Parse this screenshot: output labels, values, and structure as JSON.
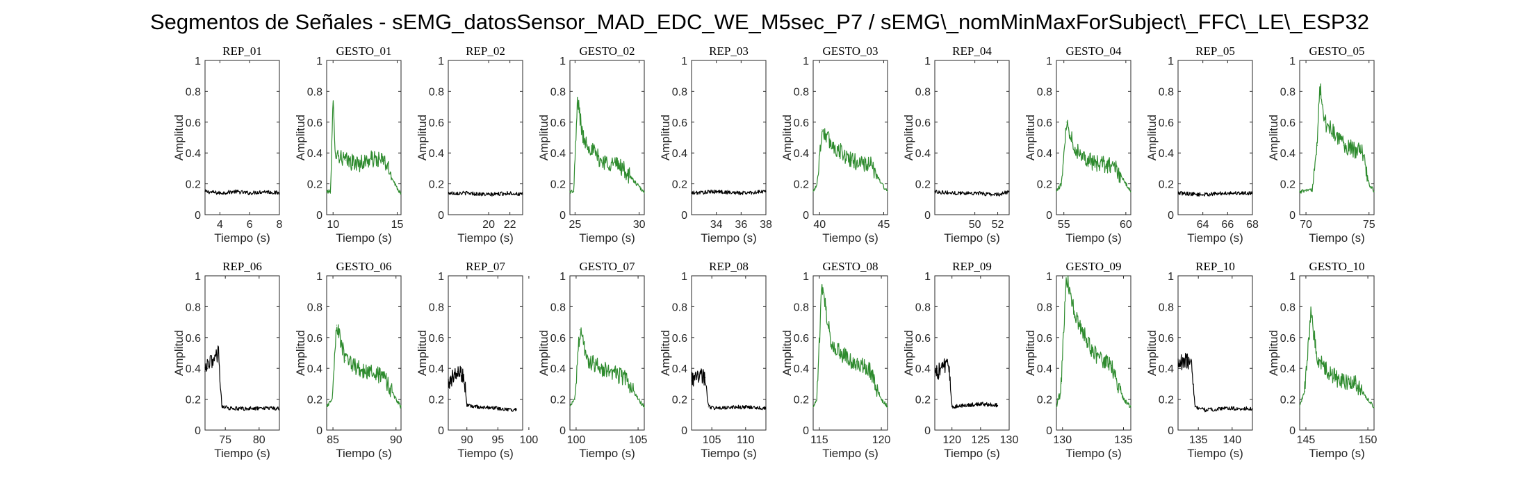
{
  "figure": {
    "title": "Segmentos de Señales - sEMG_datosSensor_MAD_EDC_WE_M5sec_P7 / sEMG\\_nomMinMaxForSubject\\_FFC\\_LE\\_ESP32"
  },
  "colors": {
    "rep": "#000000",
    "gesture": "#2e8b2e",
    "axis": "#262626"
  },
  "chart_data": [
    {
      "type": "line",
      "title": "REP_01",
      "xlabel": "Tiempo (s)",
      "ylabel": "Amplitud",
      "xlim": [
        3,
        8
      ],
      "ylim": [
        0,
        1
      ],
      "xticks": [
        4,
        6,
        8
      ],
      "yticks": [
        0,
        0.2,
        0.4,
        0.6,
        0.8,
        1
      ],
      "series": [
        {
          "kind": "rep",
          "x": [
            3.0,
            4.0,
            5.0,
            6.0,
            7.0,
            8.0
          ],
          "y": [
            0.15,
            0.14,
            0.15,
            0.14,
            0.15,
            0.14
          ]
        }
      ]
    },
    {
      "type": "line",
      "title": "GESTO_01",
      "xlabel": "Tiempo (s)",
      "ylabel": "Amplitud",
      "xlim": [
        9.5,
        15.3
      ],
      "ylim": [
        0,
        1
      ],
      "xticks": [
        10,
        15
      ],
      "yticks": [
        0,
        0.2,
        0.4,
        0.6,
        0.8,
        1
      ],
      "series": [
        {
          "kind": "gesture",
          "x": [
            9.5,
            9.8,
            10.0,
            10.2,
            11.0,
            12.0,
            13.0,
            14.0,
            15.0,
            15.3
          ],
          "y": [
            0.15,
            0.15,
            0.72,
            0.4,
            0.35,
            0.33,
            0.36,
            0.35,
            0.17,
            0.14
          ]
        }
      ]
    },
    {
      "type": "line",
      "title": "REP_02",
      "xlabel": "Tiempo (s)",
      "ylabel": "Amplitud",
      "xlim": [
        16.2,
        23.2
      ],
      "ylim": [
        0,
        1
      ],
      "xticks": [
        20,
        22
      ],
      "yticks": [
        0,
        0.2,
        0.4,
        0.6,
        0.8,
        1
      ],
      "series": [
        {
          "kind": "rep",
          "x": [
            16.2,
            18.0,
            20.0,
            22.0,
            23.2
          ],
          "y": [
            0.14,
            0.14,
            0.13,
            0.14,
            0.13
          ]
        }
      ]
    },
    {
      "type": "line",
      "title": "GESTO_02",
      "xlabel": "Tiempo (s)",
      "ylabel": "Amplitud",
      "xlim": [
        24.6,
        30.4
      ],
      "ylim": [
        0,
        1
      ],
      "xticks": [
        25,
        30
      ],
      "yticks": [
        0,
        0.2,
        0.4,
        0.6,
        0.8,
        1
      ],
      "series": [
        {
          "kind": "gesture",
          "x": [
            24.6,
            24.9,
            25.2,
            25.6,
            27.0,
            28.5,
            30.0,
            30.4
          ],
          "y": [
            0.15,
            0.15,
            0.76,
            0.5,
            0.35,
            0.32,
            0.18,
            0.14
          ]
        }
      ]
    },
    {
      "type": "line",
      "title": "REP_03",
      "xlabel": "Tiempo (s)",
      "ylabel": "Amplitud",
      "xlim": [
        32.0,
        38.0
      ],
      "ylim": [
        0,
        1
      ],
      "xticks": [
        34,
        36,
        38
      ],
      "yticks": [
        0,
        0.2,
        0.4,
        0.6,
        0.8,
        1
      ],
      "series": [
        {
          "kind": "rep",
          "x": [
            32.0,
            34.0,
            36.0,
            38.0
          ],
          "y": [
            0.14,
            0.15,
            0.14,
            0.15
          ]
        }
      ]
    },
    {
      "type": "line",
      "title": "GESTO_03",
      "xlabel": "Tiempo (s)",
      "ylabel": "Amplitud",
      "xlim": [
        39.5,
        45.3
      ],
      "ylim": [
        0,
        1
      ],
      "xticks": [
        40,
        45
      ],
      "yticks": [
        0,
        0.2,
        0.4,
        0.6,
        0.8,
        1
      ],
      "series": [
        {
          "kind": "gesture",
          "x": [
            39.5,
            39.8,
            40.2,
            41.0,
            42.5,
            44.0,
            45.0,
            45.3
          ],
          "y": [
            0.15,
            0.2,
            0.55,
            0.45,
            0.35,
            0.32,
            0.18,
            0.15
          ]
        }
      ]
    },
    {
      "type": "line",
      "title": "REP_04",
      "xlabel": "Tiempo (s)",
      "ylabel": "Amplitud",
      "xlim": [
        46.5,
        53.0
      ],
      "ylim": [
        0,
        1
      ],
      "xticks": [
        50,
        52
      ],
      "yticks": [
        0,
        0.2,
        0.4,
        0.6,
        0.8,
        1
      ],
      "series": [
        {
          "kind": "rep",
          "x": [
            46.5,
            48.0,
            50.0,
            52.0,
            53.0
          ],
          "y": [
            0.15,
            0.14,
            0.14,
            0.13,
            0.15
          ]
        }
      ]
    },
    {
      "type": "line",
      "title": "GESTO_04",
      "xlabel": "Tiempo (s)",
      "ylabel": "Amplitud",
      "xlim": [
        54.4,
        60.4
      ],
      "ylim": [
        0,
        1
      ],
      "xticks": [
        55,
        60
      ],
      "yticks": [
        0,
        0.2,
        0.4,
        0.6,
        0.8,
        1
      ],
      "series": [
        {
          "kind": "gesture",
          "x": [
            54.4,
            54.8,
            55.2,
            56.0,
            57.5,
            59.0,
            60.0,
            60.4
          ],
          "y": [
            0.15,
            0.2,
            0.6,
            0.42,
            0.33,
            0.32,
            0.2,
            0.15
          ]
        }
      ]
    },
    {
      "type": "line",
      "title": "REP_05",
      "xlabel": "Tiempo (s)",
      "ylabel": "Amplitud",
      "xlim": [
        62.0,
        68.0
      ],
      "ylim": [
        0,
        1
      ],
      "xticks": [
        64,
        66,
        68
      ],
      "yticks": [
        0,
        0.2,
        0.4,
        0.6,
        0.8,
        1
      ],
      "series": [
        {
          "kind": "rep",
          "x": [
            62.0,
            64.0,
            66.0,
            68.0
          ],
          "y": [
            0.14,
            0.13,
            0.14,
            0.14
          ]
        }
      ]
    },
    {
      "type": "line",
      "title": "GESTO_05",
      "xlabel": "Tiempo (s)",
      "ylabel": "Amplitud",
      "xlim": [
        69.5,
        75.4
      ],
      "ylim": [
        0,
        1
      ],
      "xticks": [
        70,
        75
      ],
      "yticks": [
        0,
        0.2,
        0.4,
        0.6,
        0.8,
        1
      ],
      "series": [
        {
          "kind": "gesture",
          "x": [
            69.5,
            70.5,
            70.9,
            71.1,
            71.5,
            73.0,
            74.5,
            75.0,
            75.4
          ],
          "y": [
            0.15,
            0.16,
            0.45,
            0.83,
            0.6,
            0.45,
            0.4,
            0.2,
            0.15
          ]
        }
      ]
    },
    {
      "type": "line",
      "title": "REP_06",
      "xlabel": "Tiempo (s)",
      "ylabel": "Amplitud",
      "xlim": [
        72.0,
        83.0
      ],
      "ylim": [
        0,
        1
      ],
      "xticks": [
        75,
        80
      ],
      "yticks": [
        0,
        0.2,
        0.4,
        0.6,
        0.8,
        1
      ],
      "series": [
        {
          "kind": "rep",
          "x": [
            72.0,
            73.0,
            74.0,
            74.5,
            76.0,
            78.0,
            80.0,
            83.0
          ],
          "y": [
            0.38,
            0.45,
            0.5,
            0.15,
            0.14,
            0.14,
            0.14,
            0.14
          ]
        }
      ]
    },
    {
      "type": "line",
      "title": "GESTO_06",
      "xlabel": "Tiempo (s)",
      "ylabel": "Amplitud",
      "xlim": [
        84.5,
        90.4
      ],
      "ylim": [
        0,
        1
      ],
      "xticks": [
        85,
        90
      ],
      "yticks": [
        0,
        0.2,
        0.4,
        0.6,
        0.8,
        1
      ],
      "series": [
        {
          "kind": "gesture",
          "x": [
            84.5,
            84.9,
            85.3,
            86.0,
            87.5,
            89.0,
            90.0,
            90.4
          ],
          "y": [
            0.15,
            0.2,
            0.68,
            0.45,
            0.38,
            0.35,
            0.2,
            0.15
          ]
        }
      ]
    },
    {
      "type": "line",
      "title": "REP_07",
      "xlabel": "Tiempo (s)",
      "ylabel": "Amplitud",
      "xlim": [
        87.0,
        99.0
      ],
      "ylim": [
        0,
        1
      ],
      "xticks": [
        90,
        95,
        100
      ],
      "yticks": [
        0,
        0.2,
        0.4,
        0.6,
        0.8,
        1
      ],
      "series": [
        {
          "kind": "rep",
          "x": [
            87.0,
            88.5,
            89.5,
            90.0,
            92.0,
            95.0,
            98.0
          ],
          "y": [
            0.3,
            0.38,
            0.36,
            0.16,
            0.15,
            0.14,
            0.13
          ]
        }
      ]
    },
    {
      "type": "line",
      "title": "GESTO_07",
      "xlabel": "Tiempo (s)",
      "ylabel": "Amplitud",
      "xlim": [
        99.5,
        105.5
      ],
      "ylim": [
        0,
        1
      ],
      "xticks": [
        100,
        105
      ],
      "yticks": [
        0,
        0.2,
        0.4,
        0.6,
        0.8,
        1
      ],
      "series": [
        {
          "kind": "gesture",
          "x": [
            99.5,
            99.9,
            100.3,
            101.0,
            102.5,
            104.0,
            105.0,
            105.5
          ],
          "y": [
            0.15,
            0.2,
            0.65,
            0.45,
            0.38,
            0.34,
            0.2,
            0.15
          ]
        }
      ]
    },
    {
      "type": "line",
      "title": "REP_08",
      "xlabel": "Tiempo (s)",
      "ylabel": "Amplitud",
      "xlim": [
        102.0,
        113.0
      ],
      "ylim": [
        0,
        1
      ],
      "xticks": [
        105,
        110
      ],
      "yticks": [
        0,
        0.2,
        0.4,
        0.6,
        0.8,
        1
      ],
      "series": [
        {
          "kind": "rep",
          "x": [
            102.0,
            103.0,
            104.0,
            104.5,
            106.0,
            109.0,
            113.0
          ],
          "y": [
            0.32,
            0.36,
            0.34,
            0.15,
            0.14,
            0.15,
            0.14
          ]
        }
      ]
    },
    {
      "type": "line",
      "title": "GESTO_08",
      "xlabel": "Tiempo (s)",
      "ylabel": "Amplitud",
      "xlim": [
        114.5,
        120.5
      ],
      "ylim": [
        0,
        1
      ],
      "xticks": [
        115,
        120
      ],
      "yticks": [
        0,
        0.2,
        0.4,
        0.6,
        0.8,
        1
      ],
      "series": [
        {
          "kind": "gesture",
          "x": [
            114.5,
            114.8,
            115.2,
            116.0,
            117.5,
            119.0,
            120.0,
            120.5
          ],
          "y": [
            0.15,
            0.2,
            0.94,
            0.55,
            0.45,
            0.4,
            0.2,
            0.15
          ]
        }
      ]
    },
    {
      "type": "line",
      "title": "REP_09",
      "xlabel": "Tiempo (s)",
      "ylabel": "Amplitud",
      "xlim": [
        117.0,
        130.0
      ],
      "ylim": [
        0,
        1
      ],
      "xticks": [
        120,
        125,
        130
      ],
      "yticks": [
        0,
        0.2,
        0.4,
        0.6,
        0.8,
        1
      ],
      "series": [
        {
          "kind": "rep",
          "x": [
            117.0,
            118.5,
            119.5,
            120.0,
            122.0,
            125.0,
            128.0
          ],
          "y": [
            0.35,
            0.42,
            0.4,
            0.15,
            0.16,
            0.17,
            0.16
          ]
        }
      ]
    },
    {
      "type": "line",
      "title": "GESTO_09",
      "xlabel": "Tiempo (s)",
      "ylabel": "Amplitud",
      "xlim": [
        129.5,
        135.6
      ],
      "ylim": [
        0,
        1
      ],
      "xticks": [
        130,
        135
      ],
      "yticks": [
        0,
        0.2,
        0.4,
        0.6,
        0.8,
        1
      ],
      "series": [
        {
          "kind": "gesture",
          "x": [
            129.5,
            129.9,
            130.3,
            131.0,
            132.5,
            134.0,
            135.0,
            135.6
          ],
          "y": [
            0.15,
            0.3,
            1.0,
            0.75,
            0.5,
            0.42,
            0.2,
            0.15
          ]
        }
      ]
    },
    {
      "type": "line",
      "title": "REP_10",
      "xlabel": "Tiempo (s)",
      "ylabel": "Amplitud",
      "xlim": [
        132.0,
        143.0
      ],
      "ylim": [
        0,
        1
      ],
      "xticks": [
        135,
        140
      ],
      "yticks": [
        0,
        0.2,
        0.4,
        0.6,
        0.8,
        1
      ],
      "series": [
        {
          "kind": "rep",
          "x": [
            132.0,
            133.0,
            134.0,
            134.5,
            136.0,
            139.0,
            143.0
          ],
          "y": [
            0.42,
            0.46,
            0.44,
            0.15,
            0.13,
            0.14,
            0.14
          ]
        }
      ]
    },
    {
      "type": "line",
      "title": "GESTO_10",
      "xlabel": "Tiempo (s)",
      "ylabel": "Amplitud",
      "xlim": [
        144.5,
        150.5
      ],
      "ylim": [
        0,
        1
      ],
      "xticks": [
        145,
        150
      ],
      "yticks": [
        0,
        0.2,
        0.4,
        0.6,
        0.8,
        1
      ],
      "series": [
        {
          "kind": "gesture",
          "x": [
            144.5,
            144.9,
            145.4,
            146.0,
            147.5,
            149.0,
            150.0,
            150.5
          ],
          "y": [
            0.15,
            0.25,
            0.75,
            0.45,
            0.33,
            0.3,
            0.2,
            0.15
          ]
        }
      ]
    }
  ]
}
